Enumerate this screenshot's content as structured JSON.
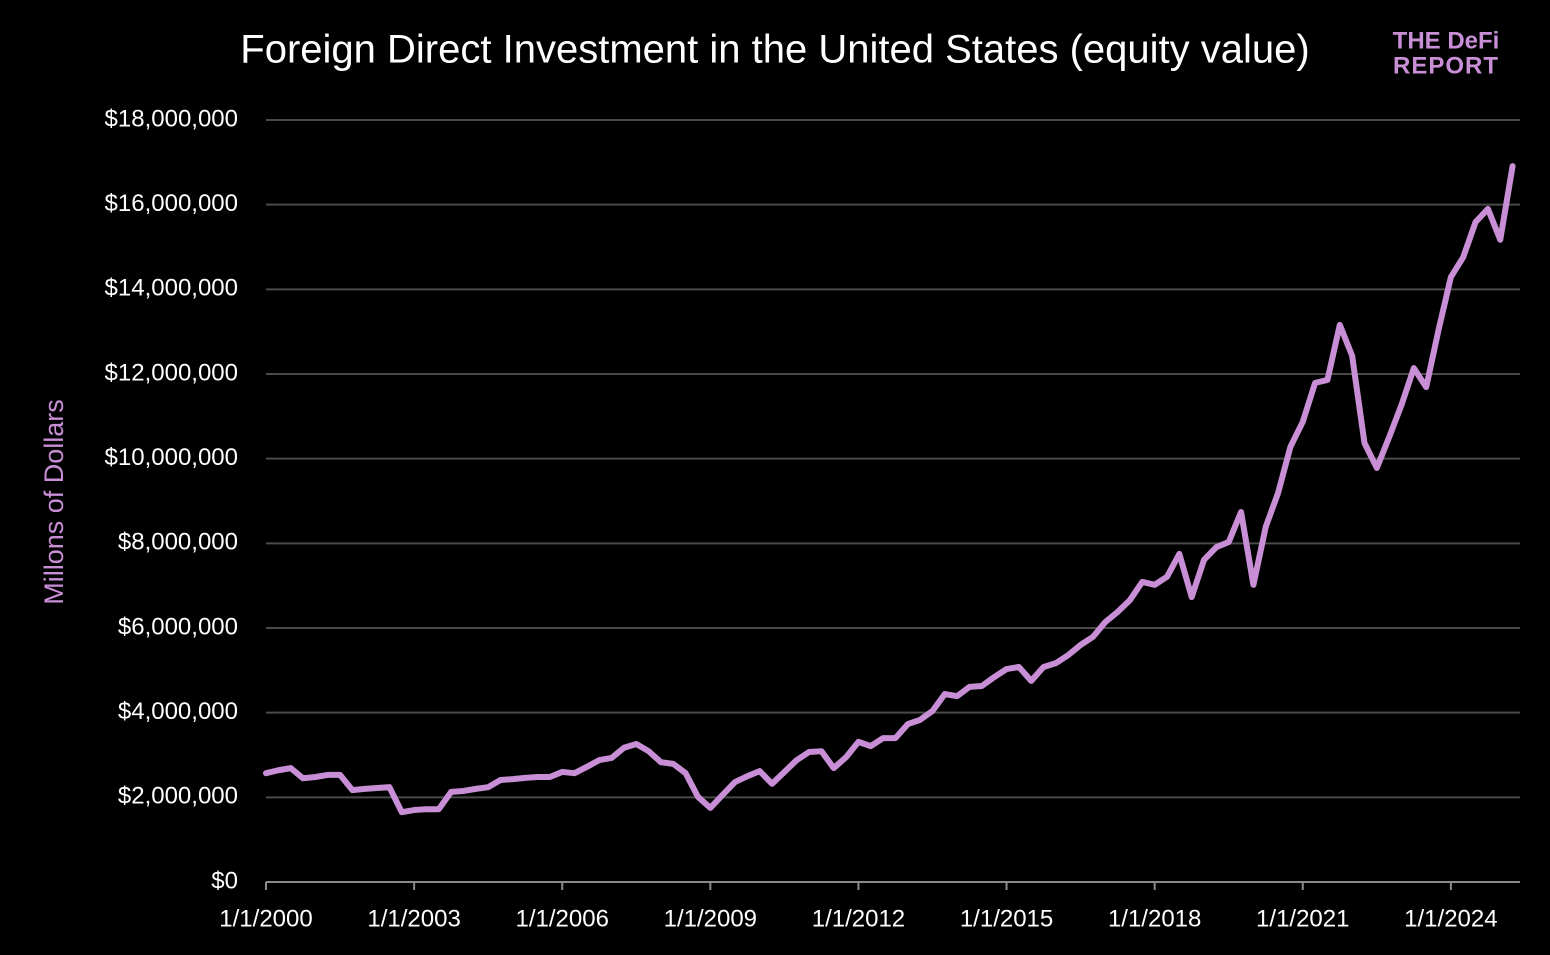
{
  "chart_data": {
    "type": "line",
    "title": "Foreign Direct Investment in the United States (equity value)",
    "y_label": "Millons of Dollars",
    "annotations": [
      "THE DeFi",
      "REPORT"
    ],
    "color": "#c98fd6",
    "grid": true,
    "x": [
      2000,
      2000.25,
      2000.5,
      2000.75,
      2001,
      2001.25,
      2001.5,
      2001.75,
      2002,
      2002.25,
      2002.5,
      2002.75,
      2003,
      2003.25,
      2003.5,
      2003.75,
      2004,
      2004.25,
      2004.5,
      2004.75,
      2005,
      2005.25,
      2005.5,
      2005.75,
      2006,
      2006.25,
      2006.5,
      2006.75,
      2007,
      2007.25,
      2007.5,
      2007.75,
      2008,
      2008.25,
      2008.5,
      2008.75,
      2009,
      2009.25,
      2009.5,
      2009.75,
      2010,
      2010.25,
      2010.5,
      2010.75,
      2011,
      2011.25,
      2011.5,
      2011.75,
      2012,
      2012.25,
      2012.5,
      2012.75,
      2013,
      2013.25,
      2013.5,
      2013.75,
      2014,
      2014.25,
      2014.5,
      2014.75,
      2015,
      2015.25,
      2015.5,
      2015.75,
      2016,
      2016.25,
      2016.5,
      2016.75,
      2017,
      2017.25,
      2017.5,
      2017.75,
      2018,
      2018.25,
      2018.5,
      2018.75,
      2019,
      2019.25,
      2019.5,
      2019.75,
      2020,
      2020.25,
      2020.5,
      2020.75,
      2021,
      2021.25,
      2021.5,
      2021.75,
      2022,
      2022.25,
      2022.5,
      2022.75,
      2023,
      2023.25,
      2023.5,
      2023.75,
      2024,
      2024.25,
      2024.5,
      2024.75,
      2025,
      2025.25
    ],
    "values": [
      2570000,
      2640000,
      2690000,
      2450000,
      2480000,
      2530000,
      2530000,
      2170000,
      2200000,
      2220000,
      2240000,
      1650000,
      1700000,
      1720000,
      1720000,
      2130000,
      2150000,
      2200000,
      2240000,
      2410000,
      2430000,
      2460000,
      2480000,
      2480000,
      2600000,
      2570000,
      2720000,
      2880000,
      2930000,
      3170000,
      3260000,
      3090000,
      2830000,
      2790000,
      2570000,
      2010000,
      1750000,
      2060000,
      2360000,
      2500000,
      2620000,
      2320000,
      2600000,
      2880000,
      3070000,
      3090000,
      2690000,
      2950000,
      3310000,
      3210000,
      3400000,
      3400000,
      3730000,
      3830000,
      4040000,
      4440000,
      4390000,
      4610000,
      4630000,
      4840000,
      5030000,
      5080000,
      4750000,
      5080000,
      5170000,
      5360000,
      5600000,
      5790000,
      6140000,
      6380000,
      6660000,
      7090000,
      7020000,
      7210000,
      7750000,
      6730000,
      7610000,
      7910000,
      8030000,
      8740000,
      7020000,
      8390000,
      9190000,
      10280000,
      10870000,
      11790000,
      11860000,
      13160000,
      12430000,
      10370000,
      9780000,
      10510000,
      11270000,
      12140000,
      11690000,
      13040000,
      14290000,
      14760000,
      15590000,
      15900000,
      15170000,
      16910000
    ],
    "xlim": [
      2000,
      2025.4
    ],
    "xticks": [
      {
        "value": 2000,
        "label": "1/1/2000"
      },
      {
        "value": 2003,
        "label": "1/1/2003"
      },
      {
        "value": 2006,
        "label": "1/1/2006"
      },
      {
        "value": 2009,
        "label": "1/1/2009"
      },
      {
        "value": 2012,
        "label": "1/1/2012"
      },
      {
        "value": 2015,
        "label": "1/1/2015"
      },
      {
        "value": 2018,
        "label": "1/1/2018"
      },
      {
        "value": 2021,
        "label": "1/1/2021"
      },
      {
        "value": 2024,
        "label": "1/1/2024"
      }
    ],
    "ylim": [
      0,
      18000000
    ],
    "yticks": [
      {
        "value": 0,
        "label": "$0"
      },
      {
        "value": 2000000,
        "label": "$2,000,000"
      },
      {
        "value": 4000000,
        "label": "$4,000,000"
      },
      {
        "value": 6000000,
        "label": "$6,000,000"
      },
      {
        "value": 8000000,
        "label": "$8,000,000"
      },
      {
        "value": 10000000,
        "label": "$10,000,000"
      },
      {
        "value": 12000000,
        "label": "$12,000,000"
      },
      {
        "value": 14000000,
        "label": "$14,000,000"
      },
      {
        "value": 16000000,
        "label": "$16,000,000"
      },
      {
        "value": 18000000,
        "label": "$18,000,000"
      }
    ]
  }
}
